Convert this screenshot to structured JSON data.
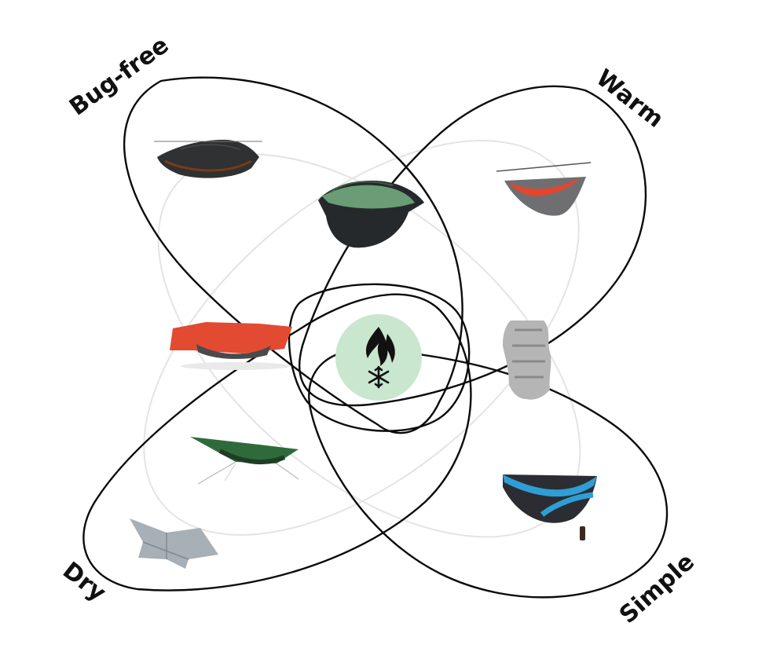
{
  "categories": {
    "bug_free": {
      "label": "Bug-free"
    },
    "warm": {
      "label": "Warm"
    },
    "dry": {
      "label": "Dry"
    },
    "simple": {
      "label": "Simple"
    }
  },
  "center": {
    "badge_color": "#c9e6cf",
    "icon": "campfire-snowflake-icon"
  },
  "items": {
    "bug_net_hammock": {
      "icon": "bug-net-hammock-icon",
      "colors": [
        "#3a3a3a",
        "#5a2a14"
      ]
    },
    "all_in_one_hammock": {
      "icon": "all-in-one-hammock-icon",
      "colors": [
        "#5f8f6a",
        "#25282b"
      ]
    },
    "underquilt_hammock": {
      "icon": "underquilt-hammock-icon",
      "colors": [
        "#e1462e",
        "#6f6f72"
      ]
    },
    "tarp_hammock": {
      "icon": "tarp-hammock-icon",
      "colors": [
        "#e24a32",
        "#4a4a4c"
      ]
    },
    "sleeping_pad": {
      "icon": "insulated-sleeping-pad-icon",
      "colors": [
        "#9a9a9a",
        "#d2d2d2"
      ]
    },
    "green_tarp_hammock": {
      "icon": "green-tarp-hammock-icon",
      "colors": [
        "#2f6b3a",
        "#1e3d24"
      ]
    },
    "grey_tarp": {
      "icon": "grey-tarp-icon",
      "colors": [
        "#a7b0b6",
        "#7f8a90"
      ]
    },
    "simple_hammock": {
      "icon": "simple-hammock-icon",
      "colors": [
        "#2f9ed6",
        "#2b2d33"
      ]
    }
  }
}
